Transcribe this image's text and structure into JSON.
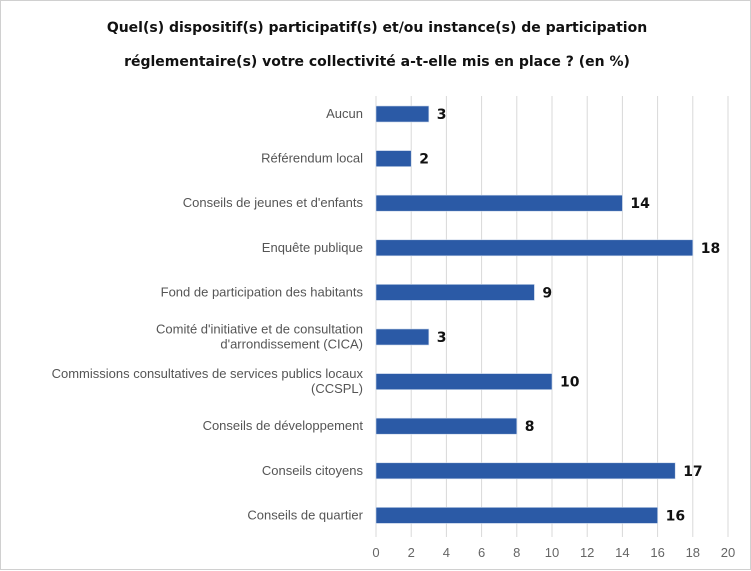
{
  "chart_data": {
    "type": "bar",
    "orientation": "horizontal",
    "title_lines": [
      "Quel(s) dispositif(s) participatif(s) et/ou instance(s) de participation",
      "réglementaire(s) votre collectivité a-t-elle mis en place ? (en %)"
    ],
    "categories": [
      [
        "Aucun"
      ],
      [
        "Référendum local"
      ],
      [
        "Conseils de jeunes et d'enfants"
      ],
      [
        "Enquête publique"
      ],
      [
        "Fond de participation des habitants"
      ],
      [
        "Comité d'initiative et de consultation",
        "d'arrondissement (CICA)"
      ],
      [
        "Commissions consultatives de services publics locaux",
        "(CCSPL)"
      ],
      [
        "Conseils de développement"
      ],
      [
        "Conseils citoyens"
      ],
      [
        "Conseils de quartier"
      ]
    ],
    "values": [
      3,
      2,
      14,
      18,
      9,
      3,
      10,
      8,
      17,
      16
    ],
    "xlim": [
      0,
      20
    ],
    "xticks": [
      "0",
      "2",
      "4",
      "6",
      "8",
      "10",
      "12",
      "14",
      "16",
      "18",
      "20"
    ],
    "grid": true,
    "data_labels": true,
    "colors": {
      "bar": "#2b5aa6",
      "grid": "#d9d9d9"
    }
  }
}
